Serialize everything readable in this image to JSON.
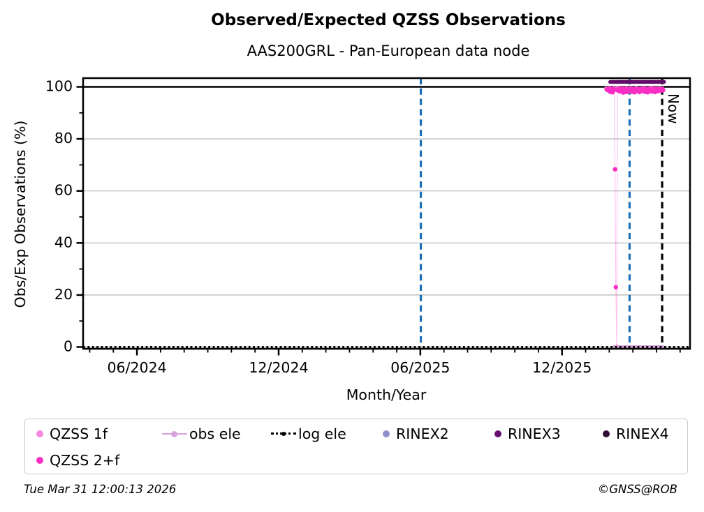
{
  "title": "Observed/Expected QZSS Observations",
  "subtitle": "AAS200GRL - Pan-European data node",
  "footer": {
    "timestamp": "Tue Mar 31 12:00:13 2026",
    "copyright": "©GNSS@ROB"
  },
  "legend": {
    "items": [
      {
        "label": "QZSS 1f",
        "type": "dot",
        "color": "#f887e0"
      },
      {
        "label": "obs ele",
        "type": "line-dot",
        "color": "#d6a3da"
      },
      {
        "label": "log ele",
        "type": "dotted-line",
        "color": "#000000"
      },
      {
        "label": "RINEX2",
        "type": "dot",
        "color": "#8d8fca"
      },
      {
        "label": "RINEX3",
        "type": "dot",
        "color": "#670e6e"
      },
      {
        "label": "RINEX4",
        "type": "dot",
        "color": "#2f0c33"
      },
      {
        "label": "QZSS 2+f",
        "type": "dot",
        "color": "#fa2ec5"
      }
    ]
  },
  "chart_data": {
    "type": "scatter",
    "title": "Observed/Expected QZSS Observations",
    "subtitle": "AAS200GRL - Pan-European data node",
    "xlabel": "Month/Year",
    "ylabel": "Obs/Exp Observations (%)",
    "x_unit": "months since 2024-01 (0 = Jan 2024)",
    "xlim": [
      2.72,
      28.42
    ],
    "ylim": [
      -0.67,
      103.35
    ],
    "xticks": [
      {
        "v": 5,
        "label": "06/2024"
      },
      {
        "v": 11,
        "label": "12/2024"
      },
      {
        "v": 17,
        "label": "06/2025"
      },
      {
        "v": 23,
        "label": "12/2025"
      }
    ],
    "yticks": [
      {
        "v": 0,
        "label": "0"
      },
      {
        "v": 20,
        "label": "20"
      },
      {
        "v": 40,
        "label": "40"
      },
      {
        "v": 60,
        "label": "60"
      },
      {
        "v": 80,
        "label": "80"
      },
      {
        "v": 100,
        "label": "100"
      }
    ],
    "yminor": [
      10,
      30,
      50,
      70,
      90
    ],
    "xminor_step": 1,
    "grid_y": [
      0,
      20,
      40,
      60,
      80
    ],
    "grid_color": "#b3b3b3",
    "hline_black": 100,
    "vlines": [
      {
        "x": 17.02,
        "color": "#1c6fb8",
        "style": "dashed",
        "label": ""
      },
      {
        "x": 25.86,
        "color": "#1c6fb8",
        "style": "dashed",
        "label": ""
      },
      {
        "x": 27.24,
        "color": "#000000",
        "style": "dashed",
        "label": "Now"
      }
    ],
    "series": [
      {
        "name": "RINEX3",
        "mode": "line",
        "color": "#5f0d66",
        "width": 5.5,
        "points": [
          [
            25.04,
            101.9
          ],
          [
            27.32,
            101.9
          ]
        ]
      },
      {
        "name": "QZSS 1f",
        "mode": "scatter",
        "color": "#f887e0",
        "x_start": 24.87,
        "x_step": 0.0707,
        "y": [
          99.3,
          98.9,
          99.5,
          99.1,
          98.8,
          99.4,
          99.0,
          99.6,
          99.2,
          98.9,
          99.3,
          99.0,
          99.5,
          98.8,
          99.2,
          99.4,
          98.9,
          99.1,
          99.5,
          99.0,
          98.8,
          99.3,
          99.1,
          99.4,
          98.9,
          99.2,
          99.0,
          99.5,
          99.1,
          98.8,
          99.3,
          99.0,
          99.4,
          99.2,
          98.9
        ]
      },
      {
        "name": "QZSS 2+f",
        "mode": "scatter",
        "color": "#fa2ec5",
        "x_start": 24.9,
        "x_step": 0.0345,
        "y": [
          98.9,
          99.2,
          98.6,
          99.4,
          98.1,
          98.8,
          99.3,
          97.9,
          98.5,
          99.1,
          68.3,
          23.0,
          0.0,
          98.7,
          99.2,
          98.4,
          99.0,
          98.2,
          99.4,
          98.8,
          97.8,
          99.1,
          98.5,
          99.3,
          98.0,
          98.9,
          99.2,
          98.3,
          99.0,
          98.6,
          99.4,
          98.1,
          98.8,
          99.2,
          97.9,
          98.6,
          99.1,
          98.4,
          99.3,
          98.7,
          98.0,
          99.2,
          98.5,
          99.0,
          98.3,
          99.4,
          98.8,
          98.1,
          99.1,
          98.6,
          97.9,
          99.3,
          98.4,
          99.0,
          98.7,
          98.2,
          99.2,
          98.5,
          99.4,
          98.0,
          98.8,
          99.1,
          98.3,
          99.0,
          98.6,
          99.2,
          98.4,
          98.9,
          99.3,
          98.7
        ]
      },
      {
        "name": "obs ele",
        "mode": "line",
        "color": "#d6a3da",
        "width": 5,
        "points": [
          [
            25.19,
            0
          ],
          [
            27.29,
            0
          ]
        ]
      },
      {
        "name": "log ele",
        "mode": "dotted",
        "color": "#000000",
        "width": 3,
        "points": [
          [
            2.72,
            0
          ],
          [
            28.42,
            0
          ]
        ]
      }
    ]
  }
}
